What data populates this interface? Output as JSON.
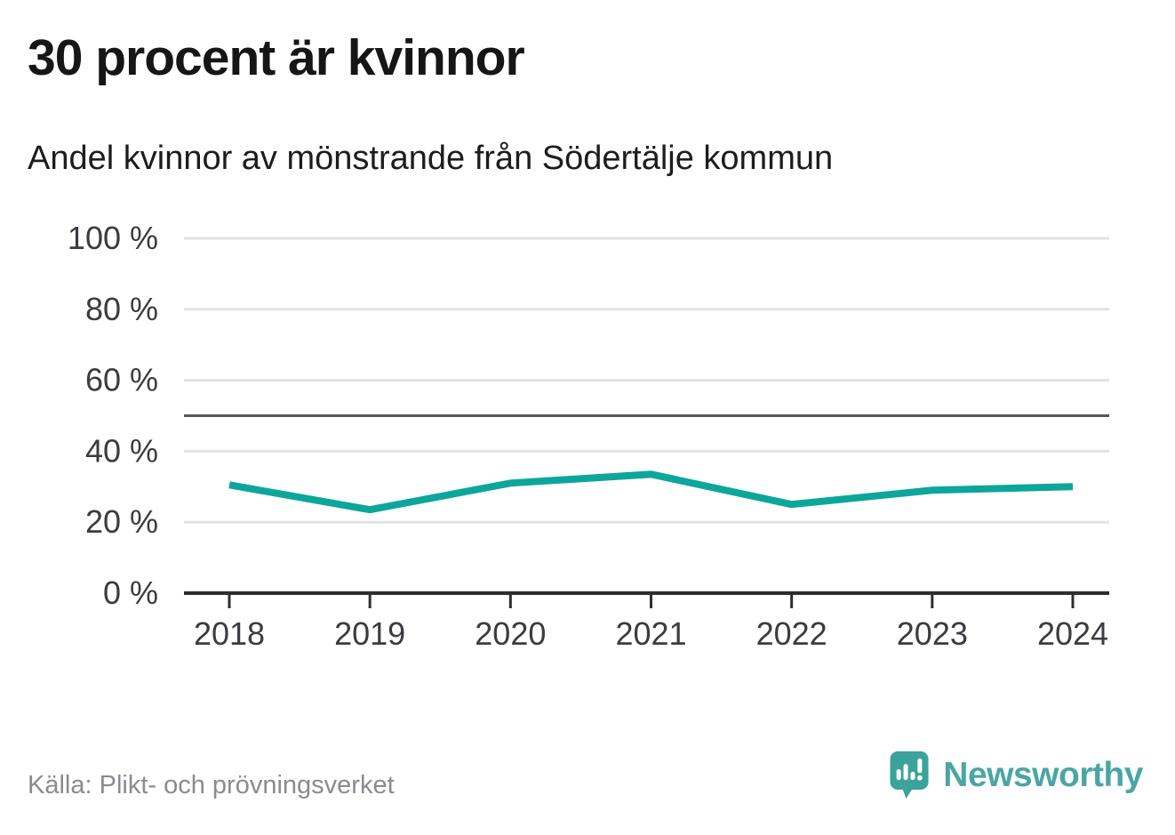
{
  "header": {
    "title": "30 procent är kvinnor",
    "subtitle": "Andel kvinnor av mönstrande från Södertälje kommun"
  },
  "chart_data": {
    "type": "line",
    "title": "30 procent är kvinnor",
    "subtitle": "Andel kvinnor av mönstrande från Södertälje kommun",
    "x": [
      2018,
      2019,
      2020,
      2021,
      2022,
      2023,
      2024
    ],
    "series": [
      {
        "name": "Andel kvinnor av mönstrande",
        "values": [
          30.5,
          23.5,
          31,
          33.5,
          25,
          29,
          30
        ]
      }
    ],
    "ylim": [
      0,
      100
    ],
    "yticks": [
      0,
      20,
      40,
      60,
      80,
      100
    ],
    "ytick_suffix": " %",
    "reference_line": 50,
    "grid": true,
    "legend": "none",
    "line_color": "#0da69b",
    "grid_color": "#e2e2e2",
    "reference_line_color": "#55565c",
    "axis_color": "#2d2e32",
    "tick_label_color": "#3b3b41"
  },
  "footer": {
    "source": "Källa: Plikt- och prövningsverket",
    "brand": "Newsworthy"
  },
  "colors": {
    "accent_teal": "#0da69b",
    "brand_mark_teal": "#3ba39b",
    "brand_word_teal": "#4ba6a3",
    "text_dark": "#161616",
    "text_gray": "#8a8a91"
  }
}
